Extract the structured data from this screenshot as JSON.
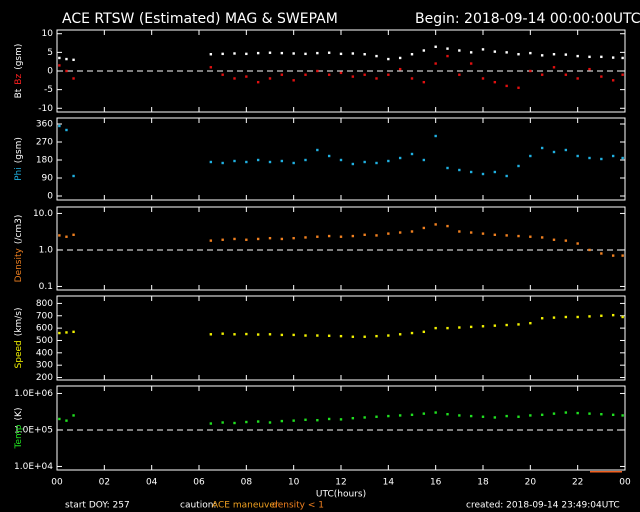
{
  "header": {
    "title": "ACE RTSW (Estimated) MAG & SWEPAM",
    "begin": "Begin: 2018-09-14 00:00:00UTC"
  },
  "x": [
    0.1,
    0.4,
    0.7,
    6.5,
    7,
    7.5,
    8,
    8.5,
    9,
    9.5,
    10,
    10.5,
    11,
    11.5,
    12,
    12.5,
    13,
    13.5,
    14,
    14.5,
    15,
    15.5,
    16,
    16.5,
    17,
    17.5,
    18,
    18.5,
    19,
    19.5,
    20,
    20.5,
    21,
    21.5,
    22,
    22.5,
    23,
    23.5,
    23.9
  ],
  "xlim": [
    0,
    24
  ],
  "xticks": [
    {
      "value": 0,
      "label": "00"
    },
    {
      "value": 2,
      "label": "02"
    },
    {
      "value": 4,
      "label": "04"
    },
    {
      "value": 6,
      "label": "06"
    },
    {
      "value": 8,
      "label": "08"
    },
    10,
    12,
    14,
    16,
    18,
    20,
    22,
    {
      "value": 24,
      "label": "00"
    }
  ],
  "xlabel": "UTC(hours)",
  "chart_data": [
    {
      "type": "scatter",
      "ylabel": [
        {
          "text": "Bt",
          "color": "#ffffff"
        },
        {
          "text": "Bz",
          "color": "#ff2020"
        },
        {
          "text": "(gsm)",
          "color": "#ffffff"
        }
      ],
      "ylim": [
        -11,
        11
      ],
      "yticks": [
        -10,
        -5,
        0,
        5,
        10
      ],
      "ref": 0,
      "series": [
        {
          "name": "Bt",
          "color": "#ffffff",
          "values": [
            3.5,
            3.2,
            3.0,
            4.5,
            4.6,
            4.7,
            4.6,
            4.8,
            4.9,
            4.8,
            4.7,
            4.6,
            4.8,
            4.9,
            4.6,
            4.7,
            4.5,
            4.0,
            3.2,
            3.5,
            4.5,
            5.5,
            6.5,
            6.0,
            5.5,
            5.0,
            5.8,
            5.2,
            5.0,
            4.5,
            4.8,
            4.2,
            4.5,
            4.4,
            4.0,
            3.8,
            3.8,
            3.6,
            3.5
          ]
        },
        {
          "name": "Bz",
          "color": "#e01010",
          "values": [
            1.5,
            0,
            -2,
            1,
            -1,
            -2,
            -1.5,
            -3,
            -2,
            -1,
            -2.5,
            -1,
            0,
            -1,
            -0.5,
            -1.5,
            -1,
            -2,
            -1,
            0.5,
            -2,
            -3,
            2,
            4,
            -1,
            2,
            -2,
            -3,
            -4,
            -4.5,
            0,
            -1,
            1,
            -1,
            -2,
            0.5,
            -1.5,
            -2.5,
            -1
          ]
        }
      ]
    },
    {
      "type": "scatter",
      "ylabel": [
        {
          "text": "Phi",
          "color": "#20b0e0"
        },
        {
          "text": "(gsm)",
          "color": "#ffffff"
        }
      ],
      "ylim": [
        -20,
        390
      ],
      "yticks": [
        0,
        90,
        180,
        270,
        360
      ],
      "series": [
        {
          "name": "Phi",
          "color": "#20b0e0",
          "values": [
            350,
            330,
            100,
            170,
            165,
            175,
            170,
            180,
            170,
            175,
            165,
            180,
            230,
            200,
            180,
            160,
            170,
            165,
            175,
            190,
            210,
            180,
            300,
            140,
            130,
            120,
            110,
            120,
            100,
            150,
            200,
            240,
            220,
            230,
            200,
            190,
            185,
            200,
            190
          ]
        }
      ]
    },
    {
      "type": "scatter",
      "log": true,
      "ylabel": [
        {
          "text": "Density",
          "color": "#f08020"
        },
        {
          "text": "(/cm3)",
          "color": "#ffffff"
        }
      ],
      "ylim": [
        0.08,
        15
      ],
      "yticks": [
        {
          "value": 0.1,
          "label": "0.1"
        },
        {
          "value": 1,
          "label": "1.0"
        },
        {
          "value": 10,
          "label": "10.0"
        }
      ],
      "ref": 1,
      "series": [
        {
          "name": "Density",
          "color": "#f08020",
          "values": [
            2.5,
            2.3,
            2.6,
            1.8,
            1.9,
            2.0,
            1.9,
            2.0,
            2.1,
            2.0,
            2.1,
            2.2,
            2.3,
            2.4,
            2.3,
            2.4,
            2.6,
            2.5,
            2.8,
            3.0,
            3.2,
            4.0,
            5.0,
            4.5,
            3.2,
            3.0,
            2.8,
            2.6,
            2.5,
            2.4,
            2.3,
            2.2,
            1.9,
            1.8,
            1.5,
            1.0,
            0.8,
            0.7,
            0.7
          ]
        }
      ]
    },
    {
      "type": "scatter",
      "ylabel": [
        {
          "text": "Speed",
          "color": "#f0f000"
        },
        {
          "text": "(km/s)",
          "color": "#ffffff"
        }
      ],
      "ylim": [
        180,
        860
      ],
      "yticks": [
        200,
        300,
        400,
        500,
        600,
        700,
        800
      ],
      "series": [
        {
          "name": "Speed",
          "color": "#f0f000",
          "values": [
            560,
            565,
            570,
            550,
            555,
            550,
            552,
            548,
            550,
            545,
            545,
            540,
            540,
            538,
            535,
            530,
            530,
            535,
            540,
            550,
            560,
            570,
            600,
            600,
            605,
            610,
            615,
            620,
            625,
            630,
            640,
            680,
            685,
            690,
            690,
            695,
            700,
            705,
            690
          ]
        }
      ]
    },
    {
      "type": "scatter",
      "log": true,
      "ylabel": [
        {
          "text": "Temp",
          "color": "#20e020"
        },
        {
          "text": "(K)",
          "color": "#ffffff"
        }
      ],
      "ylim": [
        8000,
        1600000
      ],
      "yticks": [
        {
          "value": 10000,
          "label": "1.0E+04"
        },
        {
          "value": 100000,
          "label": "1.0E+05"
        },
        {
          "value": 1000000,
          "label": "1.0E+06"
        }
      ],
      "ref": 100000,
      "series": [
        {
          "name": "Temp",
          "color": "#20e020",
          "values": [
            200000,
            180000,
            250000,
            150000,
            160000,
            155000,
            165000,
            170000,
            160000,
            175000,
            180000,
            190000,
            185000,
            200000,
            195000,
            210000,
            220000,
            230000,
            240000,
            250000,
            260000,
            280000,
            300000,
            270000,
            250000,
            240000,
            230000,
            220000,
            240000,
            230000,
            250000,
            260000,
            280000,
            300000,
            290000,
            280000,
            270000,
            260000,
            250000
          ]
        }
      ]
    }
  ],
  "footer": {
    "doy": "start DOY: 257",
    "caution": "caution:",
    "maneuver": "ACE maneuver",
    "density": "density < 1",
    "created": "created: 2018-09-14 23:49:04UTC"
  }
}
